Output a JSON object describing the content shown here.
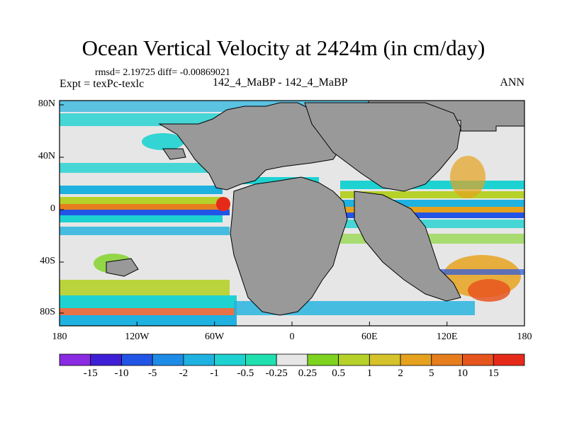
{
  "title": "Ocean Vertical Velocity at 2424m (in cm/day)",
  "stats": "rmsd= 2.19725 diff= -0.00869021",
  "expt": "Expt = texPc-texlc",
  "case": "142_4_MaBP - 142_4_MaBP",
  "season": "ANN",
  "lat_ticks": [
    "80N",
    "40N",
    "0",
    "40S",
    "80S"
  ],
  "lon_ticks": [
    "180",
    "120W",
    "60W",
    "0",
    "60E",
    "120E",
    "180"
  ],
  "colorbar": {
    "labels": [
      "-15",
      "-10",
      "-5",
      "-2",
      "-1",
      "-0.5",
      "-0.25",
      "0.25",
      "0.5",
      "1",
      "2",
      "5",
      "10",
      "15"
    ],
    "colors": [
      "#8a2be2",
      "#3f1fd6",
      "#2255e6",
      "#1e8ce6",
      "#1fb2e0",
      "#1ed2d2",
      "#20e0b0",
      "#e6e6e6",
      "#7ed321",
      "#b5d12a",
      "#d6c22a",
      "#e6a21e",
      "#e67e1e",
      "#e6551e",
      "#e62a1a"
    ]
  },
  "colors": {
    "land": "#999999",
    "ocean_neutral": "#e6e6e6",
    "outline": "#000000"
  }
}
